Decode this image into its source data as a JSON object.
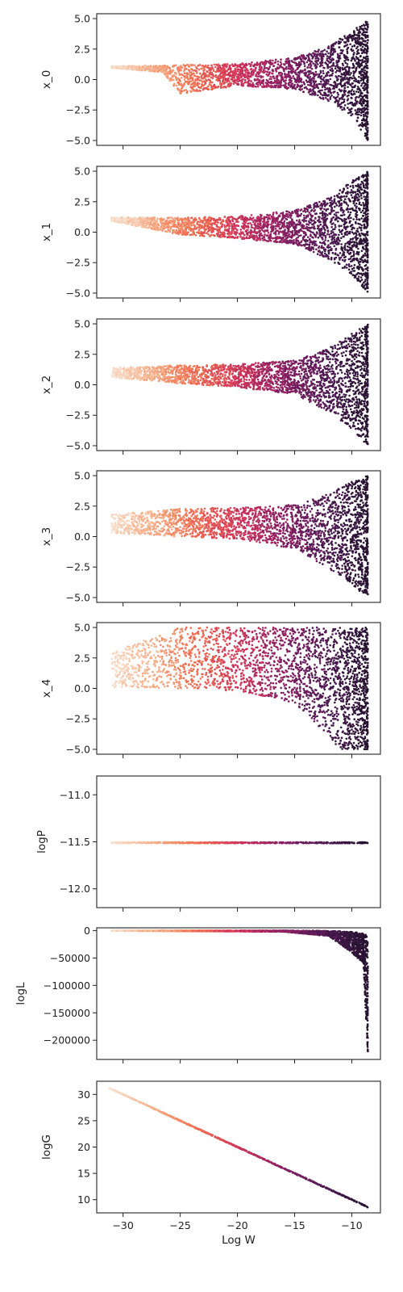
{
  "colors": {
    "colormap": [
      "#f8e3d3",
      "#f5b08a",
      "#f06f50",
      "#d0335a",
      "#8b1f63",
      "#4e1a54",
      "#24122e"
    ],
    "frame": "#222222",
    "background": "#ffffff"
  },
  "chart_data": [
    {
      "type": "scatter",
      "ylabel": "x_0",
      "xlabel": "",
      "ylim": [
        -5.4,
        5.4
      ],
      "yticks": [
        -5.0,
        -2.5,
        0.0,
        2.5,
        5.0
      ],
      "yticklabels": [
        "−5.0",
        "−2.5",
        "0.0",
        "2.5",
        "5.0"
      ],
      "xticklabels_shown": false,
      "xlim": [
        -32.3,
        -7.5
      ],
      "envelope": {
        "x": [
          -31.0,
          -26.5,
          -25.0,
          -20.0,
          -15.0,
          -12.0,
          -10.0,
          -8.6
        ],
        "upper": [
          1.1,
          1.15,
          1.2,
          1.3,
          1.8,
          2.8,
          4.0,
          5.0
        ],
        "lower": [
          0.95,
          0.6,
          -1.2,
          -0.5,
          -0.8,
          -1.8,
          -3.0,
          -5.0
        ]
      }
    },
    {
      "type": "scatter",
      "ylabel": "x_1",
      "xlabel": "",
      "ylim": [
        -5.4,
        5.4
      ],
      "yticks": [
        -5.0,
        -2.5,
        0.0,
        2.5,
        5.0
      ],
      "yticklabels": [
        "−5.0",
        "−2.5",
        "0.0",
        "2.5",
        "5.0"
      ],
      "xticklabels_shown": false,
      "xlim": [
        -32.3,
        -7.5
      ],
      "envelope": {
        "x": [
          -31.0,
          -25.0,
          -20.0,
          -15.0,
          -12.0,
          -10.0,
          -8.6
        ],
        "upper": [
          1.2,
          1.2,
          1.3,
          1.8,
          2.8,
          4.2,
          5.0
        ],
        "lower": [
          0.9,
          -0.2,
          -0.5,
          -1.0,
          -2.2,
          -3.5,
          -5.0
        ]
      }
    },
    {
      "type": "scatter",
      "ylabel": "x_2",
      "xlabel": "",
      "ylim": [
        -5.4,
        5.4
      ],
      "yticks": [
        -5.0,
        -2.5,
        0.0,
        2.5,
        5.0
      ],
      "yticklabels": [
        "−5.0",
        "−2.5",
        "0.0",
        "2.5",
        "5.0"
      ],
      "xticklabels_shown": false,
      "xlim": [
        -32.3,
        -7.5
      ],
      "envelope": {
        "x": [
          -31.0,
          -25.0,
          -20.0,
          -15.0,
          -12.0,
          -10.0,
          -8.6
        ],
        "upper": [
          1.4,
          1.6,
          1.7,
          2.0,
          3.0,
          4.2,
          5.0
        ],
        "lower": [
          0.6,
          0.1,
          -0.2,
          -0.8,
          -2.2,
          -3.6,
          -5.0
        ]
      }
    },
    {
      "type": "scatter",
      "ylabel": "x_3",
      "xlabel": "",
      "ylim": [
        -5.4,
        5.4
      ],
      "yticks": [
        -5.0,
        -2.5,
        0.0,
        2.5,
        5.0
      ],
      "yticklabels": [
        "−5.0",
        "−2.5",
        "0.0",
        "2.5",
        "5.0"
      ],
      "xticklabels_shown": false,
      "xlim": [
        -32.3,
        -7.5
      ],
      "envelope": {
        "x": [
          -31.0,
          -25.0,
          -20.0,
          -15.0,
          -12.0,
          -10.0,
          -8.6
        ],
        "upper": [
          1.8,
          2.3,
          2.4,
          2.6,
          3.5,
          4.5,
          5.0
        ],
        "lower": [
          0.3,
          0.0,
          -0.2,
          -1.0,
          -2.6,
          -4.0,
          -5.0
        ]
      }
    },
    {
      "type": "scatter",
      "ylabel": "x_4",
      "xlabel": "",
      "ylim": [
        -5.4,
        5.4
      ],
      "yticks": [
        -5.0,
        -2.5,
        0.0,
        2.5,
        5.0
      ],
      "yticklabels": [
        "−5.0",
        "−2.5",
        "0.0",
        "2.5",
        "5.0"
      ],
      "xticklabels_shown": false,
      "xlim": [
        -32.3,
        -7.5
      ],
      "envelope": {
        "x": [
          -31.0,
          -25.0,
          -20.0,
          -15.0,
          -13.0,
          -11.0,
          -8.6
        ],
        "upper": [
          3.0,
          5.0,
          5.0,
          5.0,
          5.0,
          5.0,
          5.0
        ],
        "lower": [
          0.1,
          0.0,
          -0.2,
          -1.2,
          -3.0,
          -5.0,
          -5.0
        ]
      }
    },
    {
      "type": "scatter",
      "ylabel": "logP",
      "xlabel": "",
      "ylim": [
        -12.2,
        -10.8
      ],
      "yticks": [
        -12.0,
        -11.5,
        -11.0
      ],
      "yticklabels": [
        "−12.0",
        "−11.5",
        "−11.0"
      ],
      "xticklabels_shown": false,
      "xlim": [
        -32.3,
        -7.5
      ],
      "line": {
        "x": [
          -31.0,
          -8.6
        ],
        "y": -11.51
      }
    },
    {
      "type": "scatter",
      "ylabel": "logL",
      "xlabel": "",
      "ylim": [
        -235000,
        5000
      ],
      "yticks": [
        -200000,
        -150000,
        -100000,
        -50000,
        0
      ],
      "yticklabels": [
        "−200000",
        "−150000",
        "−100000",
        "−50000",
        "0"
      ],
      "xticklabels_shown": false,
      "xlim": [
        -32.3,
        -7.5
      ],
      "envelope": {
        "x": [
          -31.0,
          -16.0,
          -12.0,
          -10.0,
          -9.0,
          -8.6
        ],
        "upper": [
          0,
          0,
          -500,
          -2000,
          -5000,
          -10000
        ],
        "lower": [
          -500,
          -2000,
          -10000,
          -40000,
          -60000,
          -225000
        ]
      }
    },
    {
      "type": "scatter",
      "ylabel": "logG",
      "xlabel": "Log W",
      "ylim": [
        7.5,
        32.5
      ],
      "yticks": [
        10,
        15,
        20,
        25,
        30
      ],
      "yticklabels": [
        "10",
        "15",
        "20",
        "25",
        "30"
      ],
      "xticks": [
        -30,
        -25,
        -20,
        -15,
        -10
      ],
      "xticklabels": [
        "−30",
        "−25",
        "−20",
        "−15",
        "−10"
      ],
      "xticklabels_shown": true,
      "xlim": [
        -32.3,
        -7.5
      ],
      "line_fit": {
        "x": [
          -31.2,
          -8.6
        ],
        "y": [
          31.2,
          8.6
        ]
      }
    }
  ]
}
